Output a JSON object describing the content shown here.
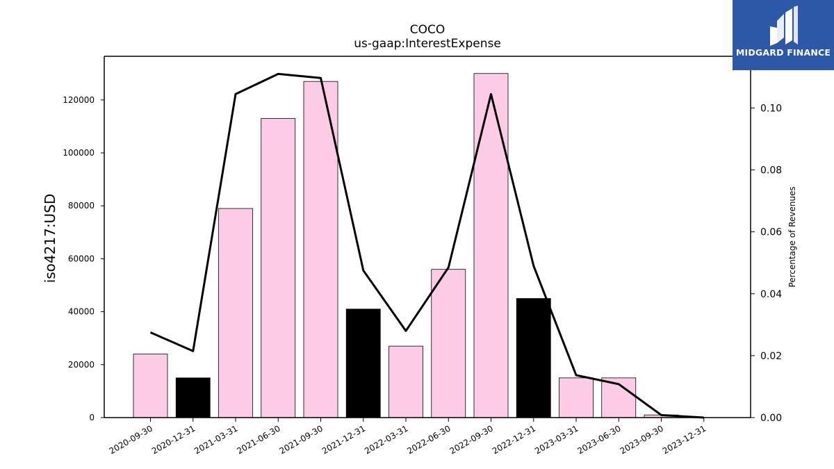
{
  "chart_data": {
    "type": "bar",
    "title": "COCO",
    "subtitle": "us-gaap:InterestExpense",
    "ylabel": "iso4217:USD",
    "y2label": "Percentage of Revenues",
    "categories": [
      "2020-09-30",
      "2020-12-31",
      "2021-03-31",
      "2021-06-30",
      "2021-09-30",
      "2021-12-31",
      "2022-03-31",
      "2022-06-30",
      "2022-09-30",
      "2022-12-31",
      "2023-03-31",
      "2023-06-30",
      "2023-09-30",
      "2023-12-31"
    ],
    "series": [
      {
        "type": "bar",
        "values": [
          24000,
          15000,
          79000,
          113000,
          127000,
          41000,
          27000,
          56000,
          130000,
          45000,
          15000,
          15000,
          1000,
          0
        ],
        "colors": [
          "#fccbe6",
          "#000000",
          "#fccbe6",
          "#fccbe6",
          "#fccbe6",
          "#000000",
          "#fccbe6",
          "#fccbe6",
          "#fccbe6",
          "#000000",
          "#fccbe6",
          "#fccbe6",
          "#fccbe6",
          "#fccbe6"
        ]
      },
      {
        "type": "line",
        "axis": "right",
        "color": "#000000",
        "values": [
          0.0275,
          0.0215,
          0.1045,
          0.111,
          0.1097,
          0.0475,
          0.028,
          0.0485,
          0.1045,
          0.049,
          0.0137,
          0.0108,
          0.0008,
          0.0
        ]
      }
    ],
    "yticks": [
      0,
      20000,
      40000,
      60000,
      80000,
      100000,
      120000
    ],
    "y2ticks": [
      "0.00",
      "0.02",
      "0.04",
      "0.06",
      "0.08",
      "0.10"
    ],
    "ylim": [
      0,
      136500
    ],
    "y2lim": [
      0,
      0.1167
    ],
    "grid": false
  },
  "logo": {
    "text": "MIDGARD FINANCE",
    "background": "#2d58a8"
  }
}
